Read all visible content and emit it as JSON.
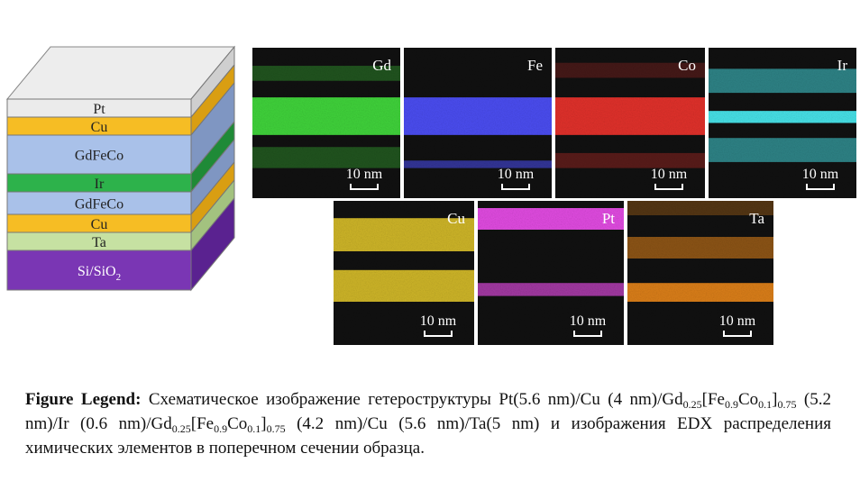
{
  "schematic": {
    "layers": [
      {
        "label": "Pt",
        "color": "#ebebeb",
        "side": "#cfcfcf"
      },
      {
        "label": "Cu",
        "color": "#f6bd24",
        "side": "#d99e12"
      },
      {
        "label": "GdFeCo",
        "color": "#a9c1e9",
        "side": "#7f96c2"
      },
      {
        "label": "Ir",
        "color": "#2db24b",
        "side": "#1f8a37"
      },
      {
        "label": "GdFeCo",
        "color": "#a9c1e9",
        "side": "#7f96c2"
      },
      {
        "label": "Cu",
        "color": "#f6bd24",
        "side": "#d99e12"
      },
      {
        "label": "Ta",
        "color": "#c6e1a2",
        "side": "#a3c27f"
      },
      {
        "label": "Si/SiO",
        "subscript": "2",
        "color": "#7a36b4",
        "side": "#5a2290"
      }
    ]
  },
  "maps": [
    {
      "element": "Gd",
      "scale": "10 nm",
      "color": "#3fd23a"
    },
    {
      "element": "Fe",
      "scale": "10 nm",
      "color": "#4a4cf0"
    },
    {
      "element": "Co",
      "scale": "10 nm",
      "color": "#e0302a"
    },
    {
      "element": "Ir",
      "scale": "10 nm",
      "color": "#46e0e6"
    },
    {
      "element": "Cu",
      "scale": "10 nm",
      "color": "#e2c72a"
    },
    {
      "element": "Pt",
      "scale": "10 nm",
      "color": "#e04ae0"
    },
    {
      "element": "Ta",
      "scale": "10 nm",
      "color": "#f08a1a"
    }
  ],
  "caption": {
    "label": "Figure Legend:",
    "parts": [
      {
        "text": " Схематическое изображение гетероструктуры Pt(5.6 nm)/Cu (4 nm)/Gd"
      },
      {
        "sub": "0.25"
      },
      {
        "text": "[Fe"
      },
      {
        "sub": "0.9"
      },
      {
        "text": "Co"
      },
      {
        "sub": "0.1"
      },
      {
        "text": "]"
      },
      {
        "sub": "0.75"
      },
      {
        "text": " (5.2 nm)/Ir (0.6 nm)/Gd"
      },
      {
        "sub": "0.25"
      },
      {
        "text": "[Fe"
      },
      {
        "sub": "0.9"
      },
      {
        "text": "Co"
      },
      {
        "sub": "0.1"
      },
      {
        "text": "]"
      },
      {
        "sub": "0.75"
      },
      {
        "text": " (4.2 nm)/Cu (5.6 nm)/Ta(5 nm) и изображения EDX распределения химических элементов в поперечном сечении образца."
      }
    ]
  }
}
